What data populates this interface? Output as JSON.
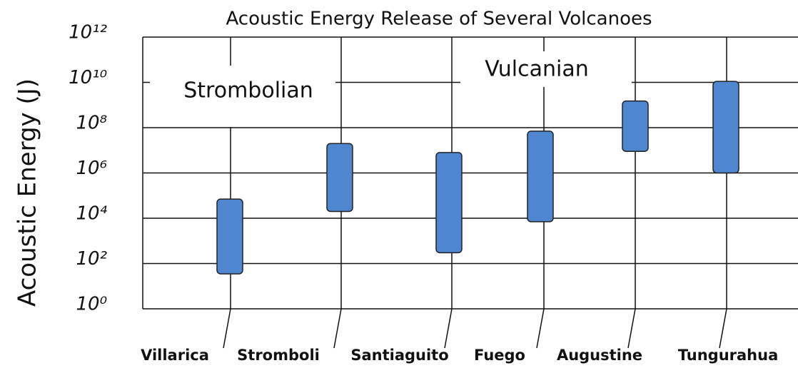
{
  "chart_data": {
    "type": "range_bar",
    "title": "Acoustic Energy Release of Several Volcanoes",
    "ylabel": "Acoustic Energy (J)",
    "categories": [
      "Villarica",
      "Stromboli",
      "Santiaguito",
      "Fuego",
      "Augustine",
      "Tungurahua"
    ],
    "low": [
      35,
      20000,
      300,
      7000,
      9000000,
      1000000
    ],
    "high": [
      70000,
      20000000,
      8000000,
      70000000,
      1500000000,
      11000000000
    ],
    "color": "#4f86d0",
    "log_y": true,
    "ylim": [
      1,
      1000000000000
    ],
    "yticks": [
      {
        "value": 1,
        "label": "10⁰"
      },
      {
        "value": 100,
        "label": "10²"
      },
      {
        "value": 10000,
        "label": "10⁴"
      },
      {
        "value": 1000000,
        "label": "10⁶"
      },
      {
        "value": 100000000,
        "label": "10⁸"
      },
      {
        "value": 10000000000,
        "label": "10¹⁰"
      },
      {
        "value": 1000000000000,
        "label": "10¹²"
      }
    ],
    "grid": true,
    "annotations": [
      "Strombolian",
      "Vulcanian"
    ]
  }
}
